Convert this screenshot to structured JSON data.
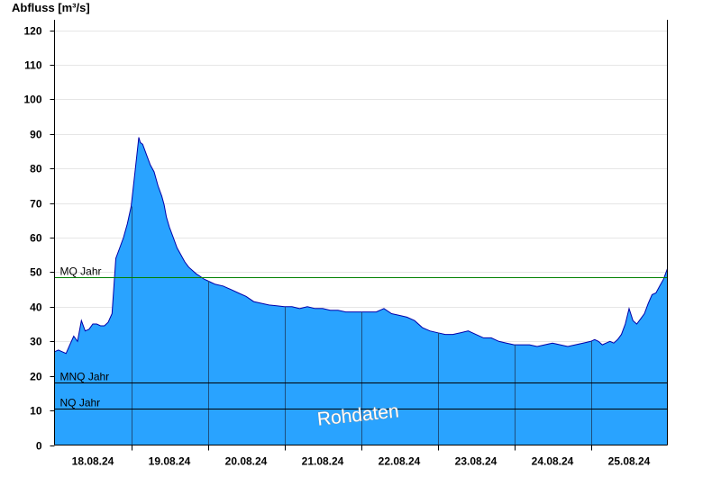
{
  "chart_data": {
    "type": "area",
    "title": "",
    "ylabel": "Abfluss [m³/s]",
    "xlabel": "",
    "ylim": [
      0,
      123
    ],
    "yticks": [
      0,
      10,
      20,
      30,
      40,
      50,
      60,
      70,
      80,
      90,
      100,
      110,
      120
    ],
    "x_range": [
      "17.08.24 12:00",
      "25.08.24 12:00"
    ],
    "x_ticks": [
      "18.08.24",
      "19.08.24",
      "20.08.24",
      "21.08.24",
      "22.08.24",
      "23.08.24",
      "24.08.24",
      "25.08.24"
    ],
    "grid": "horizontal",
    "area_color": "#29a3ff",
    "line_color": "#0000aa",
    "reference_lines": [
      {
        "label": "MQ Jahr",
        "value": 48.5,
        "color": "#008000"
      },
      {
        "label": "MNQ Jahr",
        "value": 18.2,
        "color": "#000000"
      },
      {
        "label": "NQ Jahr",
        "value": 10.5,
        "color": "#000000"
      }
    ],
    "series": [
      {
        "x": [
          0,
          0.05,
          0.1,
          0.15,
          0.2,
          0.25,
          0.3,
          0.35,
          0.4,
          0.45,
          0.5,
          0.55,
          0.6,
          0.65,
          0.7,
          0.75,
          0.8,
          0.85,
          0.9,
          0.95,
          1.0,
          1.05,
          1.1,
          1.12,
          1.15,
          1.2,
          1.25,
          1.3,
          1.35,
          1.4,
          1.43,
          1.46,
          1.5,
          1.55,
          1.6,
          1.65,
          1.7,
          1.75,
          1.8,
          1.85,
          1.9,
          1.95,
          2.0,
          2.05,
          2.1,
          2.2,
          2.3,
          2.4,
          2.5,
          2.6,
          2.7,
          2.8,
          2.9,
          3.0,
          3.1,
          3.2,
          3.3,
          3.4,
          3.5,
          3.6,
          3.7,
          3.8,
          3.9,
          4.0,
          4.1,
          4.2,
          4.3,
          4.4,
          4.5,
          4.6,
          4.7,
          4.8,
          4.85,
          4.9,
          5.0,
          5.1,
          5.2,
          5.3,
          5.4,
          5.5,
          5.6,
          5.7,
          5.8,
          5.9,
          6.0,
          6.1,
          6.2,
          6.3,
          6.4,
          6.5,
          6.6,
          6.7,
          6.8,
          6.9,
          7.0,
          7.05,
          7.1,
          7.15,
          7.2,
          7.25,
          7.3,
          7.35,
          7.4,
          7.45,
          7.5,
          7.55,
          7.6,
          7.65,
          7.7,
          7.75,
          7.8,
          7.85,
          7.9,
          7.95,
          8.0
        ],
        "y": [
          27,
          27.5,
          27,
          26.5,
          29,
          31.5,
          30,
          36,
          33,
          33.5,
          35,
          35,
          34.5,
          34.5,
          35.5,
          38,
          54,
          57,
          60,
          64,
          69,
          79,
          89,
          87.5,
          87,
          84,
          81,
          79,
          75,
          72,
          69.5,
          66,
          63,
          60,
          57,
          55,
          53,
          51.5,
          50.5,
          49.5,
          48.8,
          48,
          47.5,
          47,
          46.5,
          46,
          45,
          44,
          43,
          41.5,
          41,
          40.5,
          40.3,
          40,
          40,
          39.5,
          40,
          39.5,
          39.5,
          39,
          39,
          38.5,
          38.5,
          38.5,
          38.5,
          38.5,
          39.5,
          38,
          37.5,
          37,
          36,
          34,
          33.5,
          33,
          32.5,
          32,
          32,
          32.5,
          33,
          32,
          31,
          31,
          30,
          29.5,
          29,
          29,
          29,
          28.5,
          29,
          29.5,
          29,
          28.5,
          29,
          29.5,
          30,
          30.5,
          30,
          29,
          29.5,
          30,
          29.5,
          30.5,
          32,
          35,
          39.5,
          36,
          35,
          36.5,
          38,
          41,
          43.5,
          44,
          46,
          48,
          51
        ]
      }
    ],
    "annotations": [
      "Rohdaten"
    ]
  }
}
